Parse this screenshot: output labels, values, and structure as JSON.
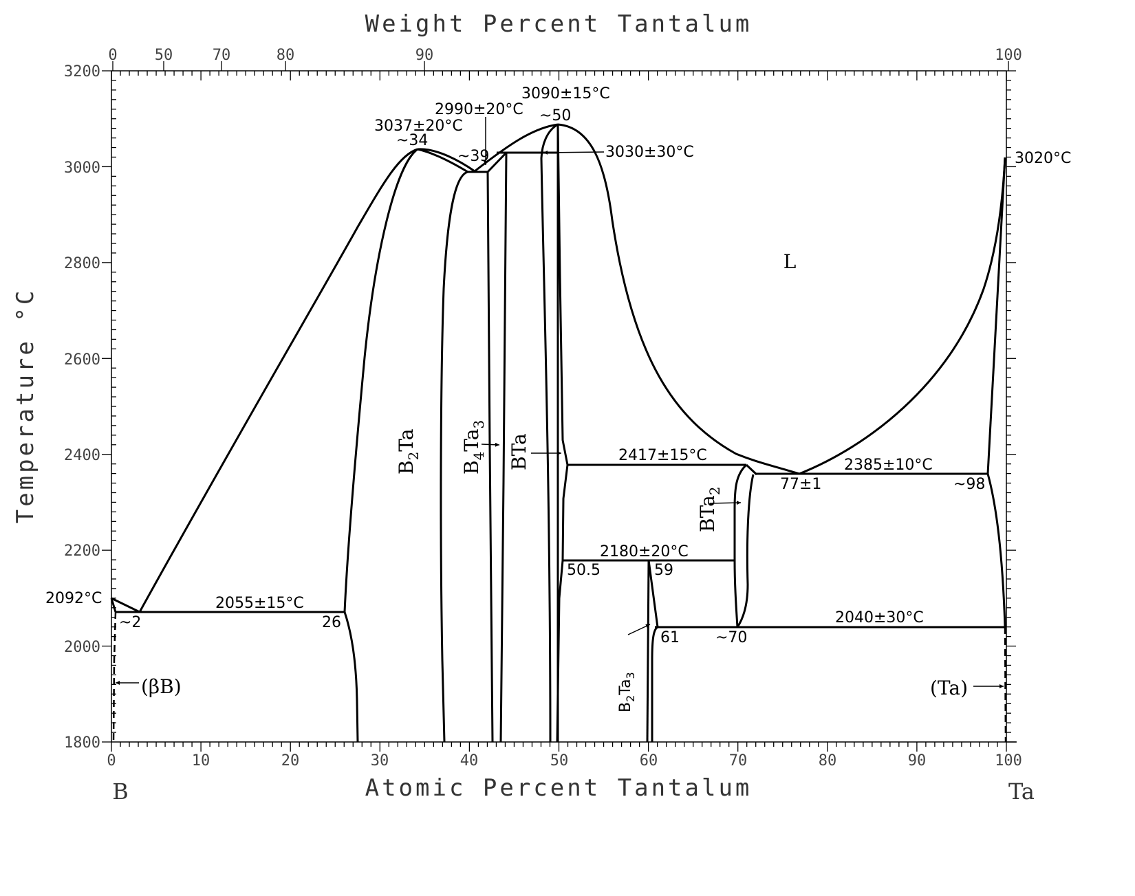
{
  "chart_data": {
    "type": "phase-diagram",
    "title": "",
    "system": "B-Ta",
    "xlabel": "Atomic Percent Tantalum",
    "x2label": "Weight Percent Tantalum",
    "ylabel": "Temperature °C",
    "xlim": [
      0,
      100
    ],
    "ylim": [
      1800,
      3200
    ],
    "x_ticks": [
      "0",
      "10",
      "20",
      "30",
      "40",
      "50",
      "60",
      "70",
      "80",
      "90",
      "100"
    ],
    "x2_ticks": [
      "0",
      "50",
      "70",
      "80",
      "90",
      "100"
    ],
    "y_ticks": [
      "1800",
      "2000",
      "2200",
      "2400",
      "2600",
      "2800",
      "3000",
      "3200"
    ],
    "end_labels": {
      "left": "B",
      "right": "Ta"
    },
    "melting_points": [
      {
        "element": "B",
        "label": "2092°C",
        "T": 2092
      },
      {
        "element": "Ta",
        "label": "3020°C",
        "T": 3020
      }
    ],
    "invariants": [
      {
        "label": "3090±15°C",
        "T": 3090,
        "composition_label": "~50",
        "x": 50,
        "type": "congruent melting BTa"
      },
      {
        "label": "3037±20°C",
        "T": 3037,
        "composition_label": "~34",
        "x": 34,
        "type": "congruent melting B2Ta"
      },
      {
        "label": "3030±30°C",
        "T": 3030,
        "type": "peritectic"
      },
      {
        "label": "2990±20°C",
        "T": 2990,
        "composition_label": "~39",
        "x": 39,
        "type": "eutectic"
      },
      {
        "label": "2417±15°C",
        "T": 2417,
        "type": "peritectic"
      },
      {
        "label": "2385±10°C",
        "T": 2385,
        "composition_labels": [
          "77±1",
          "~98"
        ],
        "type": "eutectic"
      },
      {
        "label": "2180±20°C",
        "T": 2180,
        "composition_labels": [
          "50.5",
          "59"
        ],
        "type": "peritectoid"
      },
      {
        "label": "2055±15°C",
        "T": 2055,
        "composition_labels": [
          "~2",
          "26"
        ],
        "type": "eutectic"
      },
      {
        "label": "2040±30°C",
        "T": 2040,
        "composition_labels": [
          "61",
          "~70"
        ],
        "type": "eutectoid"
      }
    ],
    "phases": [
      "L",
      "B2Ta",
      "B4Ta3",
      "BTa",
      "BTa2",
      "B2Ta3",
      "(βB)",
      "(Ta)"
    ]
  },
  "labels": {
    "x_title": "Atomic Percent Tantalum",
    "x2_title": "Weight Percent Tantalum",
    "y_title": "Temperature °C",
    "left_element": "B",
    "right_element": "Ta",
    "mp_b": "2092°C",
    "mp_ta": "3020°C",
    "t3090": "3090±15°C",
    "c50": "~50",
    "t3037": "3037±20°C",
    "c34": "~34",
    "t2990": "2990±20°C",
    "c39": "~39",
    "t3030": "3030±30°C",
    "t2417": "2417±15°C",
    "t2385": "2385±10°C",
    "c77": "77±1",
    "c98": "~98",
    "t2180": "2180±20°C",
    "c505": "50.5",
    "c59": "59",
    "t2055": "2055±15°C",
    "c2": "~2",
    "c26": "26",
    "t2040": "2040±30°C",
    "c61": "61",
    "c70": "~70",
    "phase_L": "L",
    "phase_betaB": "(βB)",
    "phase_Ta": "(Ta)",
    "B": "B",
    "Ta": "Ta",
    "s2": "2",
    "s3": "3",
    "s4": "4"
  }
}
